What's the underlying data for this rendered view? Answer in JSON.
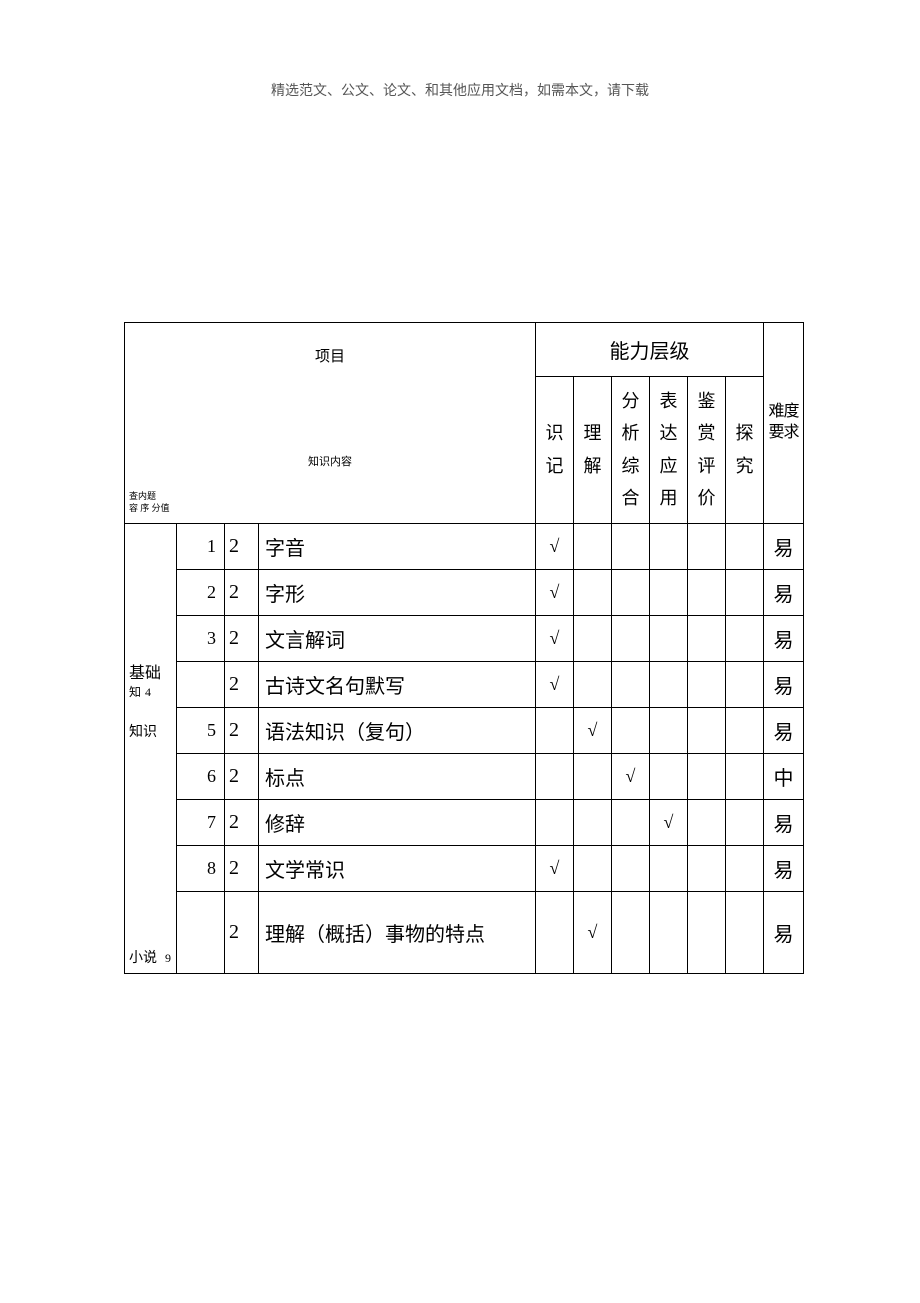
{
  "header_text": "精选范文、公文、论文、和其他应用文档，如需本文，请下载",
  "table": {
    "ability_header": "能力层级",
    "project_label": "项目",
    "knowledge_content_label": "知识内容",
    "small_labels": {
      "line1": "查内题",
      "line2": "容 序        分值"
    },
    "ability_cols": [
      "识记",
      "理解",
      "分析综合",
      "表达应用",
      "鉴赏评价",
      "探究"
    ],
    "difficulty_header": "难度要求",
    "categories": {
      "c1": {
        "main": "基础",
        "sub": "知",
        "idx": "4"
      },
      "c2": {
        "main": "知识",
        "sub": ""
      },
      "c3": {
        "main": "小说",
        "sub": "",
        "idx": "9"
      }
    },
    "rows": [
      {
        "num": "1",
        "score": "2",
        "content": "字音",
        "checks": [
          "√",
          "",
          "",
          "",
          "",
          ""
        ],
        "diff": "易"
      },
      {
        "num": "2",
        "score": "2",
        "content": "字形",
        "checks": [
          "√",
          "",
          "",
          "",
          "",
          ""
        ],
        "diff": "易"
      },
      {
        "num": "3",
        "score": "2",
        "content": "文言解词",
        "checks": [
          "√",
          "",
          "",
          "",
          "",
          ""
        ],
        "diff": "易"
      },
      {
        "num": "",
        "score": "2",
        "content": "古诗文名句默写",
        "checks": [
          "√",
          "",
          "",
          "",
          "",
          ""
        ],
        "diff": "易"
      },
      {
        "num": "5",
        "score": "2",
        "content": "语法知识（复句）",
        "checks": [
          "",
          "√",
          "",
          "",
          "",
          ""
        ],
        "diff": "易"
      },
      {
        "num": "6",
        "score": "2",
        "content": "标点",
        "checks": [
          "",
          "",
          "√",
          "",
          "",
          ""
        ],
        "diff": "中"
      },
      {
        "num": "7",
        "score": "2",
        "content": "修辞",
        "checks": [
          "",
          "",
          "",
          "√",
          "",
          ""
        ],
        "diff": "易"
      },
      {
        "num": "8",
        "score": "2",
        "content": "文学常识",
        "checks": [
          "√",
          "",
          "",
          "",
          "",
          ""
        ],
        "diff": "易"
      },
      {
        "num": "",
        "score": "2",
        "content": "理解（概括）事物的特点",
        "checks": [
          "",
          "√",
          "",
          "",
          "",
          ""
        ],
        "diff": "易"
      }
    ]
  },
  "colors": {
    "page_bg": "#ffffff",
    "text": "#000000",
    "header_text": "#555555",
    "border": "#000000"
  }
}
